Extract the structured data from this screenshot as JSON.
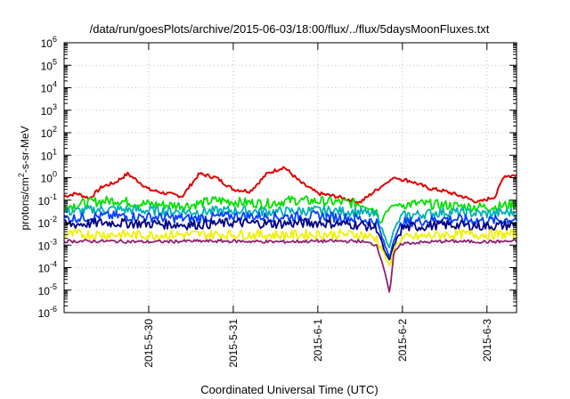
{
  "chart_data": {
    "type": "line",
    "title": "/data/run/goesPlots/archive/2015-06-03/18:00/flux/../flux/5daysMoonFluxes.txt",
    "xlabel": "Coordinated Universal Time (UTC)",
    "ylabel": "protons/cm²-s-sr-MeV",
    "ylabel_parts": {
      "pre": "protons/cm",
      "sup": "2",
      "post": "-s-sr-MeV"
    },
    "yscale": "log",
    "ylim_exp": [
      -6,
      6
    ],
    "y_tick_exponents": [
      -6,
      -5,
      -4,
      -3,
      -2,
      -1,
      0,
      1,
      2,
      3,
      4,
      5,
      6
    ],
    "y_tick_base": "10",
    "xlim_days": [
      0,
      5.35
    ],
    "x_ticks": [
      {
        "day": 1.0,
        "label": "2015-5-30"
      },
      {
        "day": 2.0,
        "label": "2015-5-31"
      },
      {
        "day": 3.0,
        "label": "2015-6-1"
      },
      {
        "day": 4.0,
        "label": "2015-6-2"
      },
      {
        "day": 5.0,
        "label": "2015-6-3"
      }
    ],
    "grid": true,
    "series": [
      {
        "color": "#e00000",
        "x": [
          0,
          0.15,
          0.3,
          0.45,
          0.6,
          0.75,
          0.9,
          1.0,
          1.2,
          1.4,
          1.5,
          1.6,
          1.8,
          2.0,
          2.2,
          2.4,
          2.6,
          2.8,
          3.0,
          3.2,
          3.4,
          3.5,
          3.7,
          3.9,
          4.1,
          4.3,
          4.5,
          4.7,
          4.9,
          5.1,
          5.2,
          5.35
        ],
        "y": [
          0.15,
          0.2,
          0.12,
          0.4,
          0.6,
          1.5,
          0.6,
          0.3,
          0.2,
          0.15,
          0.5,
          1.5,
          1.0,
          0.3,
          0.25,
          1.5,
          3.0,
          0.6,
          0.2,
          0.15,
          0.1,
          0.08,
          0.3,
          1.0,
          0.7,
          0.35,
          0.25,
          0.15,
          0.08,
          0.15,
          1.2,
          1.3
        ]
      },
      {
        "color": "#00e000",
        "x": [
          0,
          0.3,
          0.6,
          0.9,
          1.2,
          1.5,
          1.8,
          2.1,
          2.4,
          2.7,
          3.0,
          3.3,
          3.6,
          3.7,
          3.75,
          3.8,
          3.9,
          4.2,
          4.5,
          4.8,
          5.1,
          5.35
        ],
        "y": [
          0.05,
          0.08,
          0.1,
          0.07,
          0.06,
          0.06,
          0.1,
          0.08,
          0.07,
          0.1,
          0.09,
          0.08,
          0.06,
          0.03,
          0.01,
          0.03,
          0.06,
          0.07,
          0.06,
          0.05,
          0.05,
          0.07
        ]
      },
      {
        "color": "#00b0b0",
        "x": [
          0,
          0.5,
          1.0,
          1.5,
          2.0,
          2.5,
          3.0,
          3.5,
          3.7,
          3.8,
          3.85,
          3.9,
          4.0,
          4.5,
          5.0,
          5.35
        ],
        "y": [
          0.03,
          0.04,
          0.035,
          0.03,
          0.035,
          0.03,
          0.035,
          0.03,
          0.02,
          0.002,
          0.0008,
          0.005,
          0.02,
          0.03,
          0.025,
          0.03
        ]
      },
      {
        "color": "#0040ff",
        "x": [
          0,
          0.5,
          1.0,
          1.5,
          2.0,
          2.5,
          3.0,
          3.5,
          3.7,
          3.8,
          3.85,
          3.9,
          4.0,
          4.5,
          5.0,
          5.35
        ],
        "y": [
          0.015,
          0.02,
          0.018,
          0.015,
          0.02,
          0.018,
          0.02,
          0.015,
          0.01,
          0.0008,
          0.0003,
          0.002,
          0.01,
          0.015,
          0.012,
          0.015
        ]
      },
      {
        "color": "#000080",
        "x": [
          0,
          0.5,
          1.0,
          1.5,
          2.0,
          2.5,
          3.0,
          3.5,
          3.7,
          3.8,
          3.85,
          3.9,
          4.0,
          4.5,
          5.0,
          5.35
        ],
        "y": [
          0.008,
          0.01,
          0.009,
          0.008,
          0.01,
          0.009,
          0.01,
          0.008,
          0.006,
          0.0004,
          0.0002,
          0.001,
          0.006,
          0.008,
          0.007,
          0.008
        ]
      },
      {
        "color": "#f0f000",
        "x": [
          0,
          0.5,
          1.0,
          1.5,
          2.0,
          2.5,
          3.0,
          3.5,
          3.7,
          3.8,
          3.85,
          3.9,
          4.0,
          4.5,
          5.0,
          5.35
        ],
        "y": [
          0.003,
          0.003,
          0.0028,
          0.003,
          0.003,
          0.0028,
          0.003,
          0.003,
          0.002,
          0.0003,
          0.0001,
          0.0008,
          0.002,
          0.003,
          0.003,
          0.003
        ]
      },
      {
        "color": "#902070",
        "x": [
          0,
          0.5,
          1.0,
          1.5,
          2.0,
          2.5,
          3.0,
          3.5,
          3.7,
          3.8,
          3.85,
          3.9,
          4.0,
          4.5,
          5.0,
          5.35
        ],
        "y": [
          0.0015,
          0.0015,
          0.0014,
          0.0015,
          0.0015,
          0.0014,
          0.0015,
          0.0015,
          0.001,
          5e-05,
          7e-06,
          0.0005,
          0.0012,
          0.0015,
          0.0014,
          0.0015
        ]
      }
    ]
  }
}
